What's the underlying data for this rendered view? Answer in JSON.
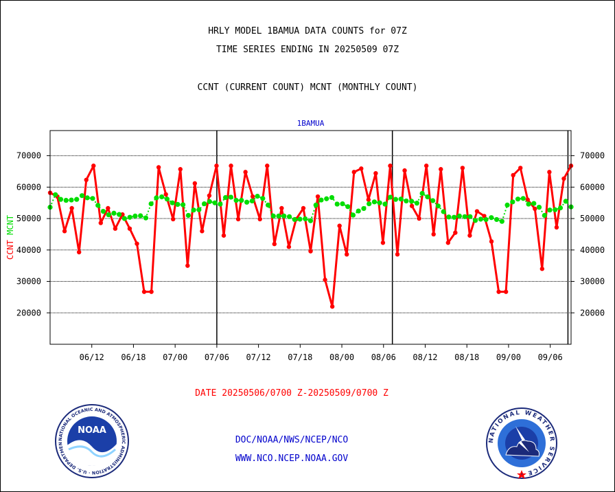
{
  "titles": {
    "line1": "HRLY MODEL 1BAMUA DATA COUNTS for 07Z",
    "line2": "TIME SERIES ENDING IN 20250509 07Z",
    "line3": "CCNT (CURRENT COUNT) MCNT (MONTHLY COUNT)"
  },
  "footer": {
    "date_range": "DATE 20250506/0700 Z-20250509/0700 Z",
    "org_path": "DOC/NOAA/NWS/NCEP/NCO",
    "website": "WWW.NCO.NCEP.NOAA.GOV"
  },
  "logos": {
    "noaa_text": "NOAA",
    "noaa_ring_text": "NATIONAL OCEANIC AND ATMOSPHERIC ADMINISTRATION · U.S. DEPARTMENT OF COMMERCE ·",
    "nws_ring_text": "NATIONAL WEATHER SERVICE ·"
  },
  "chart_data": {
    "type": "line",
    "title": "1BAMUA",
    "ylabel_left_parts": [
      {
        "text": "CCNT",
        "color": "#ff0000"
      },
      {
        "text": "MCNT",
        "color": "#00dd00"
      }
    ],
    "x_min": 0,
    "x_max": 100,
    "x_ticks": [
      {
        "x": 8,
        "label": "06/12"
      },
      {
        "x": 16,
        "label": "06/18"
      },
      {
        "x": 24,
        "label": "07/00"
      },
      {
        "x": 32,
        "label": "07/06"
      },
      {
        "x": 40,
        "label": "07/12"
      },
      {
        "x": 48,
        "label": "07/18"
      },
      {
        "x": 56,
        "label": "08/00"
      },
      {
        "x": 64,
        "label": "08/06"
      },
      {
        "x": 72,
        "label": "08/12"
      },
      {
        "x": 80,
        "label": "08/18"
      },
      {
        "x": 88,
        "label": "09/00"
      },
      {
        "x": 96,
        "label": "09/06"
      }
    ],
    "y_min": 10000,
    "y_max": 78000,
    "y_ticks": [
      20000,
      30000,
      40000,
      50000,
      60000,
      70000
    ],
    "y_tick_labels": [
      "20000",
      "30000",
      "40000",
      "50000",
      "60000",
      "70000"
    ],
    "grid": true,
    "day_boundaries_x": [
      32,
      65.7,
      99.4
    ],
    "series": [
      {
        "name": "CCNT",
        "color": "#ff0000",
        "values": [
          58200,
          57000,
          46000,
          53300,
          39300,
          62300,
          66800,
          48600,
          53300,
          46800,
          51300,
          46800,
          42000,
          26700,
          26700,
          66300,
          57700,
          49800,
          65700,
          35000,
          61200,
          46000,
          57300,
          66800,
          44600,
          66800,
          49800,
          64800,
          57000,
          49800,
          66800,
          41900,
          53300,
          41000,
          49800,
          53300,
          39600,
          57000,
          30500,
          22000,
          47700,
          38600,
          64800,
          65900,
          56000,
          64400,
          42300,
          66800,
          38600,
          65300,
          54000,
          50000,
          66800,
          45000,
          65700,
          42300,
          45500,
          66100,
          44600,
          52300,
          50800,
          42700,
          26700,
          26700,
          63800,
          66100,
          56000,
          53100,
          34000,
          64800,
          47200,
          62700,
          66800
        ]
      },
      {
        "name": "MCNT",
        "color": "#00dd00",
        "values": [
          53600,
          57600,
          56100,
          55800,
          55900,
          56100,
          57300,
          56600,
          56400,
          54200,
          52300,
          51200,
          51700,
          51300,
          50000,
          50400,
          50800,
          50900,
          50200,
          54700,
          56600,
          56900,
          56200,
          55000,
          54500,
          54400,
          51000,
          52700,
          52800,
          54700,
          55400,
          55000,
          54600,
          56700,
          56800,
          55800,
          55800,
          55200,
          55600,
          57100,
          56400,
          54300,
          50800,
          50800,
          50800,
          50600,
          49700,
          49800,
          49900,
          49300,
          54300,
          55900,
          56300,
          56700,
          54600,
          54700,
          53800,
          51100,
          52400,
          53200,
          54700,
          55300,
          55000,
          54600,
          56800,
          56100,
          56200,
          55600,
          55500,
          54900,
          58000,
          56900,
          55700,
          54000,
          52200,
          50500,
          50400,
          50800,
          50600,
          50600,
          49400,
          49800,
          49700,
          50300,
          49700,
          49100,
          54300,
          55300,
          56200,
          56400,
          54600,
          54800,
          53600,
          51000,
          52700,
          52800,
          53400,
          55500,
          53700
        ]
      }
    ]
  }
}
